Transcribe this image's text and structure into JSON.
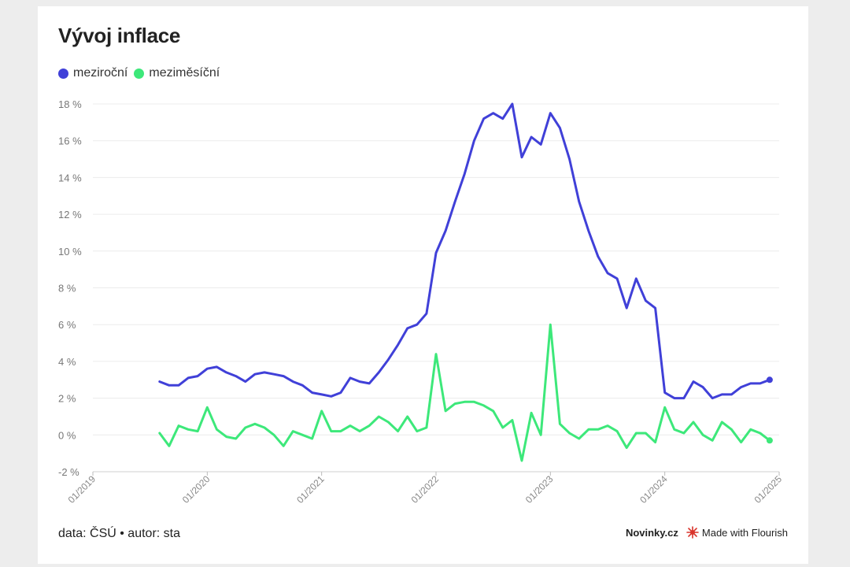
{
  "title": "Vývoj inflace",
  "legend": [
    {
      "label": "meziroční",
      "color": "#4040d8"
    },
    {
      "label": "meziměsíční",
      "color": "#3de87a"
    }
  ],
  "footer": {
    "source": "data: ČSÚ • autor: sta",
    "brand": "Novinky.cz",
    "made_with": "Made with Flourish"
  },
  "chart_data": {
    "type": "line",
    "title": "Vývoj inflace",
    "xlabel": "",
    "ylabel": "",
    "x_range": [
      "2019-01",
      "2025-01"
    ],
    "ylim": [
      -2,
      18
    ],
    "y_ticks": [
      -2,
      0,
      2,
      4,
      6,
      8,
      10,
      12,
      14,
      16,
      18
    ],
    "y_tick_labels": [
      "-2 %",
      "0 %",
      "2 %",
      "4 %",
      "6 %",
      "8 %",
      "10 %",
      "12 %",
      "14 %",
      "16 %",
      "18 %"
    ],
    "x_ticks": [
      "01/2019",
      "01/2020",
      "01/2021",
      "01/2022",
      "01/2023",
      "01/2024",
      "01/2025"
    ],
    "grid": true,
    "legend_position": "top-left",
    "x": [
      "2019-08",
      "2019-09",
      "2019-10",
      "2019-11",
      "2019-12",
      "2020-01",
      "2020-02",
      "2020-03",
      "2020-04",
      "2020-05",
      "2020-06",
      "2020-07",
      "2020-08",
      "2020-09",
      "2020-10",
      "2020-11",
      "2020-12",
      "2021-01",
      "2021-02",
      "2021-03",
      "2021-04",
      "2021-05",
      "2021-06",
      "2021-07",
      "2021-08",
      "2021-09",
      "2021-10",
      "2021-11",
      "2021-12",
      "2022-01",
      "2022-02",
      "2022-03",
      "2022-04",
      "2022-05",
      "2022-06",
      "2022-07",
      "2022-08",
      "2022-09",
      "2022-10",
      "2022-11",
      "2022-12",
      "2023-01",
      "2023-02",
      "2023-03",
      "2023-04",
      "2023-05",
      "2023-06",
      "2023-07",
      "2023-08",
      "2023-09",
      "2023-10",
      "2023-11",
      "2023-12",
      "2024-01",
      "2024-02",
      "2024-03",
      "2024-04",
      "2024-05",
      "2024-06",
      "2024-07",
      "2024-08",
      "2024-09",
      "2024-10",
      "2024-11",
      "2024-12"
    ],
    "series": [
      {
        "name": "meziroční",
        "color": "#4040d8",
        "values": [
          2.9,
          2.7,
          2.7,
          3.1,
          3.2,
          3.6,
          3.7,
          3.4,
          3.2,
          2.9,
          3.3,
          3.4,
          3.3,
          3.2,
          2.9,
          2.7,
          2.3,
          2.2,
          2.1,
          2.3,
          3.1,
          2.9,
          2.8,
          3.4,
          4.1,
          4.9,
          5.8,
          6.0,
          6.6,
          9.9,
          11.1,
          12.7,
          14.2,
          16.0,
          17.2,
          17.5,
          17.2,
          18.0,
          15.1,
          16.2,
          15.8,
          17.5,
          16.7,
          15.0,
          12.7,
          11.1,
          9.7,
          8.8,
          8.5,
          6.9,
          8.5,
          7.3,
          6.9,
          2.3,
          2.0,
          2.0,
          2.9,
          2.6,
          2.0,
          2.2,
          2.2,
          2.6,
          2.8,
          2.8,
          3.0
        ]
      },
      {
        "name": "meziměsíční",
        "color": "#3de87a",
        "values": [
          0.1,
          -0.6,
          0.5,
          0.3,
          0.2,
          1.5,
          0.3,
          -0.1,
          -0.2,
          0.4,
          0.6,
          0.4,
          0.0,
          -0.6,
          0.2,
          0.0,
          -0.2,
          1.3,
          0.2,
          0.2,
          0.5,
          0.2,
          0.5,
          1.0,
          0.7,
          0.2,
          1.0,
          0.2,
          0.4,
          4.4,
          1.3,
          1.7,
          1.8,
          1.8,
          1.6,
          1.3,
          0.4,
          0.8,
          -1.4,
          1.2,
          0.0,
          6.0,
          0.6,
          0.1,
          -0.2,
          0.3,
          0.3,
          0.5,
          0.2,
          -0.7,
          0.1,
          0.1,
          -0.4,
          1.5,
          0.3,
          0.1,
          0.7,
          0.0,
          -0.3,
          0.7,
          0.3,
          -0.4,
          0.3,
          0.1,
          -0.3
        ]
      }
    ]
  }
}
